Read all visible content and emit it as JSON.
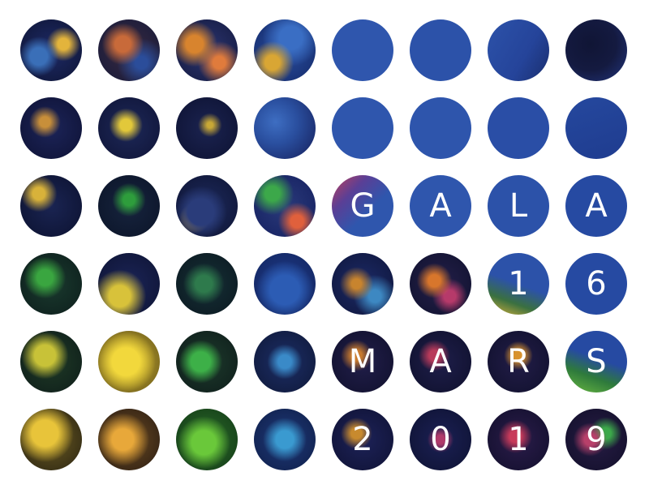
{
  "poster": {
    "row3": [
      "G",
      "A",
      "L",
      "A"
    ],
    "row4": [
      "1",
      "6"
    ],
    "row5": [
      "M",
      "A",
      "R",
      "S"
    ],
    "row6": [
      "2",
      "0",
      "1",
      "9"
    ]
  },
  "colors": {
    "solid_blue": "#2c52a8",
    "deep_navy": "#14163c",
    "mid_blue": "#1f3d95",
    "glitter_gold": "#e8c23a",
    "glitter_green": "#3ba63a",
    "glitter_navy": "#1b2356"
  }
}
